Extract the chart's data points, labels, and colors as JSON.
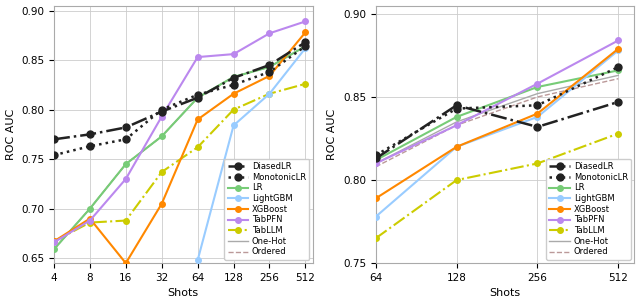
{
  "plot1": {
    "shots": [
      4,
      8,
      16,
      32,
      64,
      128,
      256,
      512
    ],
    "xlim_log": [
      2,
      9.2
    ],
    "ylim": [
      0.645,
      0.905
    ],
    "yticks": [
      0.65,
      0.7,
      0.75,
      0.8,
      0.85,
      0.9
    ],
    "xticks": [
      4,
      8,
      16,
      32,
      64,
      128,
      256,
      512
    ],
    "series": {
      "DiasedLR": {
        "y": [
          0.77,
          0.775,
          0.782,
          0.798,
          0.812,
          0.832,
          0.845,
          0.868
        ],
        "color": "#222222",
        "ls": "-.",
        "marker": "o",
        "lw": 1.8,
        "ms": 5,
        "zorder": 5
      },
      "MonotonicLR": {
        "y": [
          0.754,
          0.763,
          0.77,
          0.8,
          0.815,
          0.825,
          0.838,
          0.864
        ],
        "color": "#222222",
        "ls": ":",
        "marker": "o",
        "lw": 1.8,
        "ms": 5,
        "zorder": 5
      },
      "LR": {
        "y": [
          0.659,
          0.7,
          0.745,
          0.773,
          0.812,
          0.833,
          0.843,
          0.864
        ],
        "color": "#77cc77",
        "ls": "-",
        "marker": "o",
        "lw": 1.5,
        "ms": 4,
        "zorder": 4
      },
      "LightGBM": {
        "y": [
          null,
          null,
          null,
          null,
          0.648,
          0.784,
          0.816,
          0.862
        ],
        "color": "#99ccff",
        "ls": "-",
        "marker": "o",
        "lw": 1.5,
        "ms": 4,
        "zorder": 4
      },
      "XGBoost": {
        "y": [
          0.667,
          0.69,
          0.645,
          0.705,
          0.79,
          0.816,
          0.834,
          0.878
        ],
        "color": "#ff8800",
        "ls": "-",
        "marker": "o",
        "lw": 1.5,
        "ms": 4,
        "zorder": 4
      },
      "TabPFN": {
        "y": [
          0.666,
          0.688,
          0.73,
          0.793,
          0.853,
          0.856,
          0.877,
          0.889
        ],
        "color": "#bb88ee",
        "ls": "-",
        "marker": "o",
        "lw": 1.5,
        "ms": 4,
        "zorder": 4
      },
      "TabLLM": {
        "y": [
          0.667,
          0.686,
          0.688,
          0.737,
          0.762,
          0.8,
          0.816,
          0.826
        ],
        "color": "#cccc00",
        "ls": "-.",
        "marker": "o",
        "lw": 1.5,
        "ms": 4,
        "zorder": 3
      },
      "One-Hot": {
        "y": [
          0.659,
          0.7,
          0.745,
          0.773,
          0.812,
          0.833,
          0.843,
          0.864
        ],
        "color": "#aaaaaa",
        "ls": "-",
        "marker": null,
        "lw": 1.0,
        "ms": 0,
        "zorder": 2
      },
      "Ordered": {
        "y": [
          0.659,
          0.7,
          0.745,
          0.773,
          0.812,
          0.833,
          0.843,
          0.864
        ],
        "color": "#bb9999",
        "ls": "--",
        "marker": null,
        "lw": 1.0,
        "ms": 0,
        "zorder": 2
      }
    }
  },
  "plot2": {
    "shots": [
      64,
      128,
      256,
      512
    ],
    "xlim_log": [
      6,
      9.2
    ],
    "ylim": [
      0.755,
      0.905
    ],
    "yticks": [
      0.75,
      0.8,
      0.85,
      0.9
    ],
    "xticks": [
      64,
      128,
      256,
      512
    ],
    "series": {
      "DiasedLR": {
        "y": [
          0.813,
          0.845,
          0.832,
          0.847
        ],
        "color": "#222222",
        "ls": "-.",
        "marker": "o",
        "lw": 1.8,
        "ms": 5,
        "zorder": 5
      },
      "MonotonicLR": {
        "y": [
          0.815,
          0.843,
          0.845,
          0.868
        ],
        "color": "#222222",
        "ls": ":",
        "marker": "o",
        "lw": 1.8,
        "ms": 5,
        "zorder": 5
      },
      "LR": {
        "y": [
          0.812,
          0.838,
          0.856,
          0.866
        ],
        "color": "#77cc77",
        "ls": "-",
        "marker": "o",
        "lw": 1.5,
        "ms": 4,
        "zorder": 4
      },
      "LightGBM": {
        "y": [
          0.778,
          0.82,
          0.838,
          0.878
        ],
        "color": "#99ccff",
        "ls": "-",
        "marker": "o",
        "lw": 1.5,
        "ms": 4,
        "zorder": 4
      },
      "XGBoost": {
        "y": [
          0.789,
          0.82,
          0.84,
          0.879
        ],
        "color": "#ff8800",
        "ls": "-",
        "marker": "o",
        "lw": 1.5,
        "ms": 4,
        "zorder": 4
      },
      "TabPFN": {
        "y": [
          0.81,
          0.833,
          0.858,
          0.884
        ],
        "color": "#bb88ee",
        "ls": "-",
        "marker": "o",
        "lw": 1.5,
        "ms": 4,
        "zorder": 4
      },
      "TabLLM": {
        "y": [
          0.765,
          0.8,
          0.81,
          0.828
        ],
        "color": "#cccc00",
        "ls": "-.",
        "marker": "o",
        "lw": 1.5,
        "ms": 4,
        "zorder": 3
      },
      "One-Hot": {
        "y": [
          0.81,
          0.835,
          0.852,
          0.863
        ],
        "color": "#aaaaaa",
        "ls": "-",
        "marker": null,
        "lw": 1.0,
        "ms": 0,
        "zorder": 2
      },
      "Ordered": {
        "y": [
          0.808,
          0.833,
          0.85,
          0.861
        ],
        "color": "#bb9999",
        "ls": "--",
        "marker": null,
        "lw": 1.0,
        "ms": 0,
        "zorder": 2
      }
    }
  },
  "legend_order": [
    "DiasedLR",
    "MonotonicLR",
    "LR",
    "LightGBM",
    "XGBoost",
    "TabPFN",
    "TabLLM",
    "One-Hot",
    "Ordered"
  ],
  "legend_labels": {
    "DiasedLR": "DiasedLR",
    "MonotonicLR": "MonotonicLR",
    "LR": "LR",
    "LightGBM": "LightGBM",
    "XGBoost": "XGBoost",
    "TabPFN": "TabPFN",
    "TabLLM": "TabLLM",
    "One-Hot": "One-Hot",
    "Ordered": "Ordered"
  },
  "ylabel": "ROC AUC",
  "xlabel": "Shots",
  "bg_color": "#ffffff"
}
